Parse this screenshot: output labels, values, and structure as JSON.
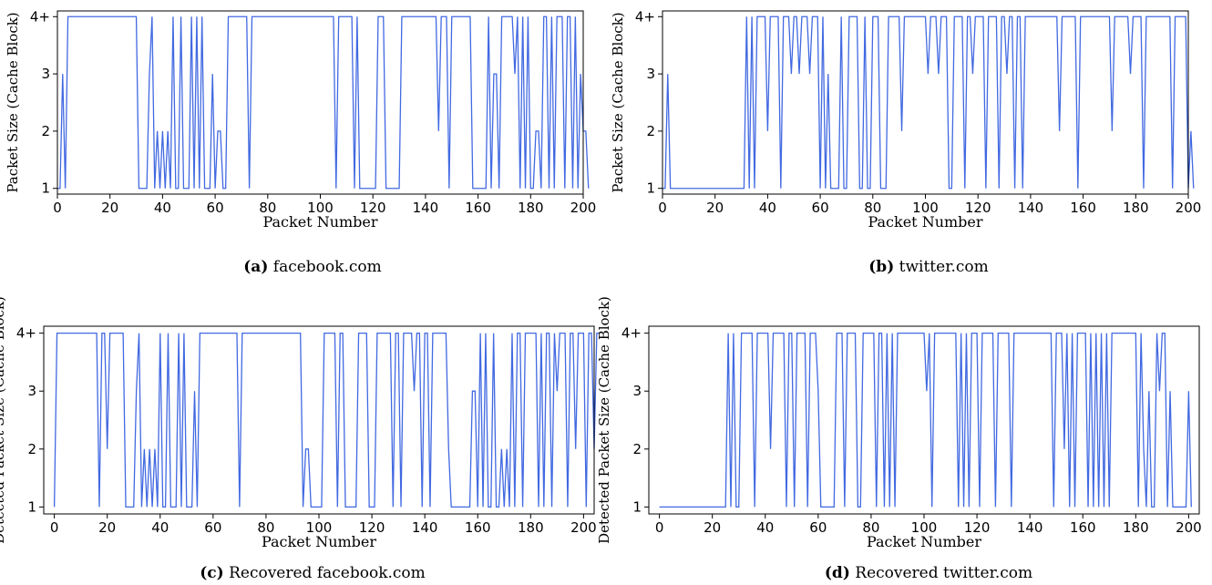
{
  "chart_data": [
    {
      "type": "line",
      "caption_letter": "(a)",
      "caption_text": "facebook.com",
      "xlabel": "Packet Number",
      "ylabel": "Packet Size (Cache Block)",
      "xlim": [
        0,
        200
      ],
      "ylim": [
        0.9,
        4.1
      ],
      "xticks": [
        0,
        20,
        40,
        60,
        80,
        100,
        120,
        140,
        160,
        180,
        200
      ],
      "yticks": [
        1,
        2,
        3,
        4
      ],
      "ytick_labels": [
        "1",
        "2",
        "3",
        "4+"
      ],
      "series": [
        {
          "color": "#4169e1",
          "values": [
            1,
            1,
            3,
            1,
            4,
            4,
            4,
            4,
            4,
            4,
            4,
            4,
            4,
            4,
            4,
            4,
            4,
            4,
            4,
            4,
            4,
            4,
            4,
            4,
            4,
            4,
            4,
            4,
            4,
            4,
            4,
            1,
            1,
            1,
            1,
            3,
            4,
            1,
            2,
            1,
            2,
            1,
            2,
            1,
            4,
            1,
            1,
            4,
            1,
            1,
            1,
            4,
            1,
            4,
            1,
            4,
            1,
            1,
            1,
            3,
            1,
            2,
            2,
            1,
            1,
            4,
            4,
            4,
            4,
            4,
            4,
            4,
            4,
            1,
            4,
            4,
            4,
            4,
            4,
            4,
            4,
            4,
            4,
            4,
            4,
            4,
            4,
            4,
            4,
            4,
            4,
            4,
            4,
            4,
            4,
            4,
            4,
            4,
            4,
            4,
            4,
            4,
            4,
            4,
            4,
            4,
            1,
            4,
            4,
            4,
            4,
            4,
            4,
            1,
            4,
            1,
            1,
            1,
            1,
            1,
            1,
            1,
            4,
            4,
            4,
            1,
            1,
            1,
            1,
            1,
            1,
            4,
            4,
            4,
            4,
            4,
            4,
            4,
            4,
            4,
            4,
            4,
            4,
            4,
            4,
            2,
            4,
            4,
            4,
            1,
            4,
            4,
            4,
            4,
            4,
            4,
            4,
            4,
            1,
            1,
            1,
            1,
            1,
            1,
            4,
            1,
            3,
            3,
            1,
            4,
            4,
            4,
            4,
            4,
            3,
            4,
            1,
            4,
            1,
            4,
            1,
            1,
            2,
            2,
            1,
            4,
            4,
            1,
            4,
            1,
            4,
            4,
            4,
            1,
            4,
            4,
            1,
            4,
            1,
            3,
            2,
            2,
            1
          ]
        }
      ]
    },
    {
      "type": "line",
      "caption_letter": "(b)",
      "caption_text": "twitter.com",
      "xlabel": "Packet Number",
      "ylabel": "Packet Size (Cache Block)",
      "xlim": [
        0,
        200
      ],
      "ylim": [
        0.9,
        4.1
      ],
      "xticks": [
        0,
        20,
        40,
        60,
        80,
        100,
        120,
        140,
        160,
        180,
        200
      ],
      "yticks": [
        1,
        2,
        3,
        4
      ],
      "ytick_labels": [
        "1",
        "2",
        "3",
        "4+"
      ],
      "series": [
        {
          "color": "#4169e1",
          "values": [
            1,
            1,
            3,
            1,
            1,
            1,
            1,
            1,
            1,
            1,
            1,
            1,
            1,
            1,
            1,
            1,
            1,
            1,
            1,
            1,
            1,
            1,
            1,
            1,
            1,
            1,
            1,
            1,
            1,
            1,
            1,
            1,
            4,
            1,
            4,
            1,
            4,
            4,
            4,
            4,
            2,
            4,
            4,
            4,
            4,
            1,
            4,
            4,
            4,
            3,
            4,
            4,
            3,
            4,
            4,
            4,
            3,
            4,
            4,
            4,
            1,
            4,
            1,
            3,
            1,
            1,
            1,
            1,
            4,
            1,
            1,
            4,
            4,
            4,
            4,
            1,
            1,
            4,
            1,
            1,
            4,
            4,
            4,
            1,
            1,
            1,
            4,
            4,
            4,
            4,
            4,
            2,
            4,
            4,
            4,
            4,
            4,
            4,
            4,
            4,
            4,
            3,
            4,
            4,
            4,
            3,
            4,
            4,
            4,
            1,
            1,
            4,
            4,
            4,
            4,
            1,
            4,
            4,
            3,
            4,
            4,
            4,
            4,
            1,
            4,
            4,
            4,
            4,
            1,
            4,
            4,
            3,
            4,
            4,
            1,
            4,
            4,
            1,
            4,
            4,
            4,
            4,
            4,
            4,
            4,
            4,
            4,
            4,
            4,
            4,
            4,
            2,
            4,
            4,
            4,
            4,
            4,
            4,
            1,
            4,
            4,
            4,
            4,
            4,
            4,
            4,
            4,
            4,
            4,
            4,
            4,
            2,
            4,
            4,
            4,
            4,
            4,
            4,
            3,
            4,
            4,
            4,
            4,
            1,
            4,
            4,
            4,
            4,
            4,
            4,
            4,
            4,
            4,
            4,
            1,
            4,
            4,
            4,
            4,
            4,
            1,
            2,
            1
          ]
        }
      ]
    },
    {
      "type": "line",
      "caption_letter": "(c)",
      "caption_text": "Recovered facebook.com",
      "xlabel": "Packet Number",
      "ylabel": "Detected Packet Size (Cache Block)",
      "xlim": [
        -4,
        204
      ],
      "ylim": [
        0.88,
        4.12
      ],
      "xticks": [
        0,
        20,
        40,
        60,
        80,
        100,
        120,
        140,
        160,
        180,
        200
      ],
      "yticks": [
        1,
        2,
        3,
        4
      ],
      "ytick_labels": [
        "1",
        "2",
        "3",
        "4+"
      ],
      "series": [
        {
          "color": "#4169e1",
          "values": [
            1,
            4,
            4,
            4,
            4,
            4,
            4,
            4,
            4,
            4,
            4,
            4,
            4,
            4,
            4,
            4,
            4,
            1,
            4,
            4,
            2,
            4,
            4,
            4,
            4,
            4,
            4,
            1,
            1,
            1,
            1,
            3,
            4,
            1,
            2,
            1,
            2,
            1,
            2,
            1,
            4,
            1,
            1,
            4,
            1,
            1,
            1,
            4,
            1,
            4,
            1,
            1,
            1,
            3,
            1,
            4,
            4,
            4,
            4,
            4,
            4,
            4,
            4,
            4,
            4,
            4,
            4,
            4,
            4,
            4,
            1,
            4,
            4,
            4,
            4,
            4,
            4,
            4,
            4,
            4,
            4,
            4,
            4,
            4,
            4,
            4,
            4,
            4,
            4,
            4,
            4,
            4,
            4,
            4,
            1,
            2,
            2,
            1,
            1,
            1,
            1,
            1,
            4,
            4,
            4,
            4,
            4,
            1,
            4,
            4,
            1,
            1,
            1,
            1,
            1,
            4,
            4,
            4,
            4,
            1,
            1,
            1,
            4,
            4,
            4,
            4,
            4,
            4,
            1,
            4,
            4,
            1,
            4,
            4,
            4,
            4,
            3,
            4,
            4,
            1,
            4,
            4,
            1,
            4,
            4,
            4,
            4,
            4,
            4,
            2,
            1,
            1,
            1,
            1,
            1,
            1,
            1,
            1,
            3,
            3,
            1,
            4,
            1,
            4,
            1,
            1,
            4,
            1,
            1,
            2,
            1,
            2,
            1,
            4,
            1,
            4,
            4,
            1,
            4,
            4,
            4,
            4,
            4,
            1,
            4,
            1,
            4,
            4,
            1,
            4,
            3,
            4,
            4,
            4,
            1,
            4,
            4,
            2,
            4,
            4,
            4,
            1,
            4,
            4,
            2,
            4,
            4
          ]
        }
      ]
    },
    {
      "type": "line",
      "caption_letter": "(d)",
      "caption_text": "Recovered twitter.com",
      "xlabel": "Packet Number",
      "ylabel": "Detected Packet Size (Cache Block)",
      "xlim": [
        -4,
        204
      ],
      "ylim": [
        0.88,
        4.12
      ],
      "xticks": [
        0,
        20,
        40,
        60,
        80,
        100,
        120,
        140,
        160,
        180,
        200
      ],
      "yticks": [
        1,
        2,
        3,
        4
      ],
      "ytick_labels": [
        "1",
        "2",
        "3",
        "4+"
      ],
      "series": [
        {
          "color": "#4169e1",
          "values": [
            1,
            1,
            1,
            1,
            1,
            1,
            1,
            1,
            1,
            1,
            1,
            1,
            1,
            1,
            1,
            1,
            1,
            1,
            1,
            1,
            1,
            1,
            1,
            1,
            1,
            1,
            4,
            1,
            4,
            1,
            1,
            4,
            4,
            4,
            4,
            4,
            1,
            4,
            4,
            4,
            4,
            4,
            2,
            4,
            4,
            4,
            4,
            4,
            1,
            4,
            4,
            1,
            4,
            4,
            4,
            4,
            1,
            4,
            4,
            4,
            3,
            1,
            1,
            1,
            1,
            1,
            1,
            4,
            4,
            4,
            1,
            4,
            4,
            4,
            4,
            1,
            1,
            4,
            4,
            4,
            4,
            4,
            1,
            4,
            4,
            1,
            4,
            1,
            4,
            1,
            4,
            4,
            4,
            4,
            4,
            4,
            4,
            4,
            4,
            4,
            4,
            3,
            4,
            1,
            4,
            4,
            4,
            4,
            4,
            4,
            4,
            4,
            4,
            1,
            4,
            1,
            4,
            1,
            4,
            4,
            4,
            1,
            4,
            4,
            4,
            4,
            4,
            1,
            4,
            4,
            4,
            4,
            4,
            1,
            4,
            4,
            4,
            4,
            4,
            4,
            4,
            4,
            4,
            4,
            4,
            4,
            4,
            4,
            4,
            1,
            4,
            4,
            4,
            2,
            4,
            1,
            4,
            1,
            4,
            4,
            4,
            4,
            1,
            4,
            1,
            4,
            1,
            4,
            1,
            4,
            1,
            4,
            4,
            4,
            4,
            4,
            4,
            4,
            4,
            4,
            4,
            1,
            4,
            2,
            1,
            3,
            1,
            1,
            4,
            3,
            4,
            4,
            1,
            3,
            1,
            1,
            1,
            1,
            1,
            1,
            3,
            1
          ]
        }
      ]
    }
  ]
}
